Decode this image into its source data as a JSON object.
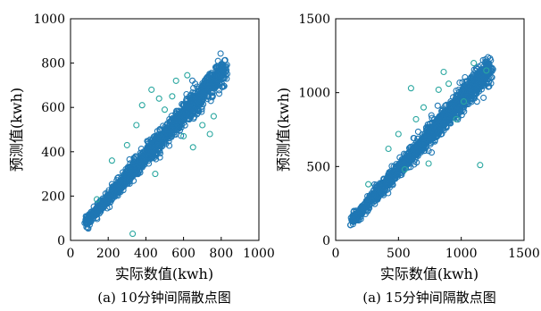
{
  "colors": {
    "marker": "#1f77b4",
    "marker_outlier": "#2aa7a0"
  },
  "chart_data": [
    {
      "type": "scatter",
      "title": "",
      "caption": "(a) 10分钟间隔散点图",
      "xlabel": "实际数值(kwh)",
      "ylabel": "预测值(kwh)",
      "xlim": [
        0,
        1000
      ],
      "ylim": [
        0,
        1000
      ],
      "xticks": [
        "0",
        "200",
        "400",
        "600",
        "800",
        "1000"
      ],
      "yticks": [
        "0",
        "200",
        "400",
        "600",
        "800",
        "1000"
      ],
      "grid": false,
      "trend": {
        "x_min": 80,
        "x_max": 820,
        "slope": 0.94,
        "intercept": 5
      },
      "outliers": [
        {
          "x": 140,
          "y": 185
        },
        {
          "x": 220,
          "y": 360
        },
        {
          "x": 330,
          "y": 30
        },
        {
          "x": 350,
          "y": 520
        },
        {
          "x": 380,
          "y": 610
        },
        {
          "x": 430,
          "y": 680
        },
        {
          "x": 450,
          "y": 300
        },
        {
          "x": 470,
          "y": 640
        },
        {
          "x": 500,
          "y": 590
        },
        {
          "x": 560,
          "y": 720
        },
        {
          "x": 620,
          "y": 745
        },
        {
          "x": 650,
          "y": 420
        },
        {
          "x": 700,
          "y": 520
        },
        {
          "x": 740,
          "y": 480
        },
        {
          "x": 760,
          "y": 560
        },
        {
          "x": 600,
          "y": 470
        },
        {
          "x": 540,
          "y": 650
        },
        {
          "x": 300,
          "y": 430
        }
      ]
    },
    {
      "type": "scatter",
      "title": "",
      "caption": "(a) 15分钟间隔散点图",
      "xlabel": "实际数值(kwh)",
      "ylabel": "预测值(kwh)",
      "xlim": [
        0,
        1500
      ],
      "ylim": [
        0,
        1500
      ],
      "xticks": [
        "0",
        "500",
        "1000",
        "1500"
      ],
      "yticks": [
        "0",
        "500",
        "1000",
        "1500"
      ],
      "grid": false,
      "trend": {
        "x_min": 120,
        "x_max": 1230,
        "slope": 0.94,
        "intercept": 10
      },
      "outliers": [
        {
          "x": 260,
          "y": 380
        },
        {
          "x": 420,
          "y": 620
        },
        {
          "x": 550,
          "y": 480
        },
        {
          "x": 600,
          "y": 1030
        },
        {
          "x": 640,
          "y": 820
        },
        {
          "x": 700,
          "y": 900
        },
        {
          "x": 740,
          "y": 520
        },
        {
          "x": 820,
          "y": 1020
        },
        {
          "x": 860,
          "y": 1140
        },
        {
          "x": 900,
          "y": 1060
        },
        {
          "x": 960,
          "y": 820
        },
        {
          "x": 1020,
          "y": 940
        },
        {
          "x": 1150,
          "y": 510
        },
        {
          "x": 1100,
          "y": 1200
        },
        {
          "x": 1200,
          "y": 1150
        },
        {
          "x": 500,
          "y": 720
        }
      ]
    }
  ]
}
